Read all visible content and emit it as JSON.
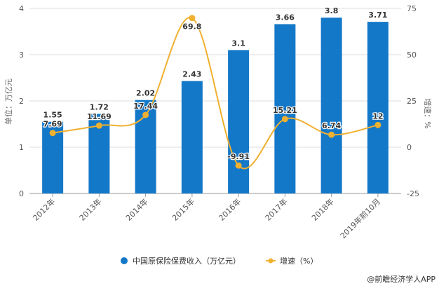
{
  "chart_data": {
    "type": "bar",
    "categories": [
      "2012年",
      "2013年",
      "2014年",
      "2015年",
      "2016年",
      "2017年",
      "2018年",
      "2019年前10月"
    ],
    "series": [
      {
        "name": "中国原保险保费收入（万亿元）",
        "kind": "bar",
        "axis": "left",
        "color": "#1478c8",
        "values": [
          1.55,
          1.72,
          2.02,
          2.43,
          3.1,
          3.66,
          3.8,
          3.71
        ],
        "labels": [
          "1.55",
          "1.72",
          "2.02",
          "2.43",
          "3.1",
          "3.66",
          "3.8",
          "3.71"
        ]
      },
      {
        "name": "增速（%）",
        "kind": "line",
        "axis": "right",
        "color": "#f0b030",
        "values": [
          7.69,
          11.69,
          17.44,
          69.8,
          -9.91,
          15.21,
          6.74,
          12
        ],
        "labels": [
          "7.69",
          "11.69",
          "17.44",
          "69.8",
          "-9.91",
          "15.21",
          "6.74",
          "12"
        ]
      }
    ],
    "ylabel": "单位：万亿元",
    "y2label": "增速：%",
    "ylim": [
      0,
      4
    ],
    "yticks": [
      "0",
      "1",
      "2",
      "3",
      "4"
    ],
    "y2lim": [
      -25,
      75
    ],
    "y2ticks": [
      "-25",
      "0",
      "25",
      "50",
      "75"
    ],
    "grid": true,
    "legend": "bottom-center"
  },
  "source": "@前瞻经济学人APP"
}
